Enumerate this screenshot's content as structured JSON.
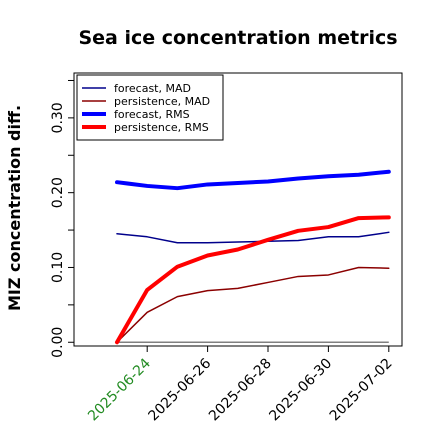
{
  "chart_data": {
    "type": "line",
    "title": "Sea ice concentration metrics",
    "ylabel": "MIZ concentration diff.",
    "xlabel": "",
    "ylim": [
      -0.005,
      0.36
    ],
    "yticks": [
      0.0,
      0.1,
      0.2,
      0.3
    ],
    "ytick_labels": [
      "0.00",
      "0.10",
      "0.20",
      "0.30"
    ],
    "grid": false,
    "legend_position": "upper-left",
    "x": [
      "2025-06-23",
      "2025-06-24",
      "2025-06-25",
      "2025-06-26",
      "2025-06-27",
      "2025-06-28",
      "2025-06-29",
      "2025-06-30",
      "2025-07-01",
      "2025-07-02"
    ],
    "xticks": [
      "2025-06-24",
      "2025-06-26",
      "2025-06-28",
      "2025-06-30",
      "2025-07-02"
    ],
    "xtick_colors": [
      "#228B22",
      "#000000",
      "#000000",
      "#000000",
      "#000000"
    ],
    "zero_line_color": "#808080",
    "series": [
      {
        "name": "forecast,  MAD",
        "color": "#00008B",
        "width": 1.5,
        "values": [
          0.145,
          0.141,
          0.133,
          0.133,
          0.134,
          0.135,
          0.136,
          0.141,
          0.141,
          0.147
        ]
      },
      {
        "name": "persistence, MAD",
        "color": "#8B0000",
        "width": 1.5,
        "values": [
          0.0,
          0.04,
          0.061,
          0.069,
          0.072,
          0.08,
          0.088,
          0.09,
          0.1,
          0.099
        ]
      },
      {
        "name": "forecast,  RMS",
        "color": "#0000FF",
        "width": 4,
        "values": [
          0.214,
          0.209,
          0.206,
          0.211,
          0.213,
          0.215,
          0.219,
          0.222,
          0.224,
          0.228
        ]
      },
      {
        "name": "persistence, RMS",
        "color": "#FF0000",
        "width": 4,
        "values": [
          0.0,
          0.07,
          0.101,
          0.116,
          0.124,
          0.137,
          0.149,
          0.154,
          0.166,
          0.167
        ]
      }
    ]
  }
}
